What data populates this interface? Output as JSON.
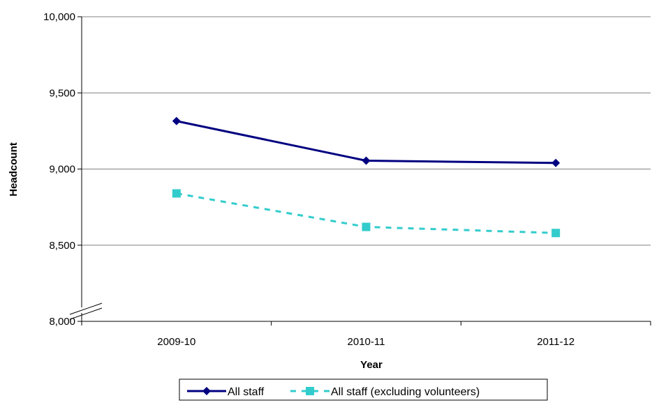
{
  "chart_data": {
    "type": "line",
    "title": "",
    "xlabel": "Year",
    "ylabel": "Headcount",
    "categories": [
      "2009-10",
      "2010-11",
      "2011-12"
    ],
    "ylim": [
      8000,
      10000
    ],
    "yticks": [
      8000,
      8500,
      9000,
      9500,
      10000
    ],
    "ytick_labels": [
      "8,000",
      "8,500",
      "9,000",
      "9,500",
      "10,000"
    ],
    "axis_break": true,
    "grid": "horizontal",
    "legend_position": "bottom",
    "series": [
      {
        "name": "All staff",
        "values": [
          9315,
          9055,
          9040
        ],
        "color": "#000080",
        "style": "solid",
        "marker": "diamond"
      },
      {
        "name": "All staff (excluding volunteers)",
        "values": [
          8840,
          8620,
          8580
        ],
        "color": "#33CCCC",
        "style": "dashed",
        "marker": "square"
      }
    ]
  }
}
